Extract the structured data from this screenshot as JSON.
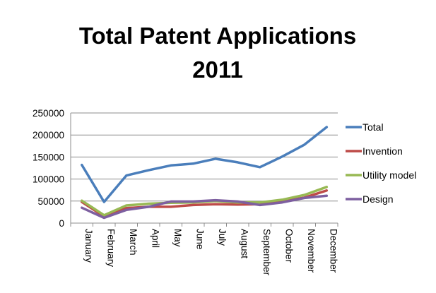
{
  "chart_data": {
    "type": "line",
    "title": "Total Patent Applications",
    "subtitle": "2011",
    "xlabel": "",
    "ylabel": "",
    "categories": [
      "January",
      "February",
      "March",
      "April",
      "May",
      "June",
      "July",
      "August",
      "September",
      "October",
      "November",
      "December"
    ],
    "y_ticks": [
      "250000",
      "200000",
      "150000",
      "100000",
      "50000",
      "0"
    ],
    "ylim": [
      0,
      250000
    ],
    "grid": true,
    "legend_position": "right",
    "series": [
      {
        "name": "Total",
        "color": "#4a7ebb",
        "values": [
          132000,
          48000,
          108000,
          120000,
          131000,
          135000,
          146000,
          138000,
          127000,
          151000,
          178000,
          218000
        ]
      },
      {
        "name": "Invention",
        "color": "#be4b48",
        "values": [
          48000,
          15000,
          34000,
          37000,
          37000,
          41000,
          43000,
          42000,
          43000,
          49000,
          58000,
          74000
        ]
      },
      {
        "name": "Utility model",
        "color": "#98b954",
        "values": [
          51000,
          18000,
          40000,
          44000,
          46000,
          47000,
          50000,
          47000,
          47000,
          53000,
          64000,
          82000
        ]
      },
      {
        "name": "Design",
        "color": "#7d5fa0",
        "values": [
          35000,
          12000,
          30000,
          37000,
          49000,
          49000,
          52000,
          49000,
          41000,
          47000,
          57000,
          62000
        ]
      }
    ]
  }
}
